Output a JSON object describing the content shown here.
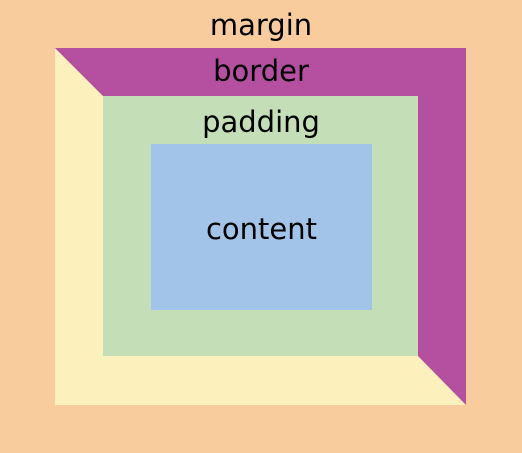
{
  "labels": {
    "margin": "margin",
    "border": "border",
    "padding": "padding",
    "content": "content"
  },
  "colors": {
    "margin": "#F9CC9D",
    "border_light": "#FCF0BC",
    "border_dark": "#B54FA0",
    "padding": "#C4DFB8",
    "content": "#A2C4E9",
    "text": "#000000"
  }
}
